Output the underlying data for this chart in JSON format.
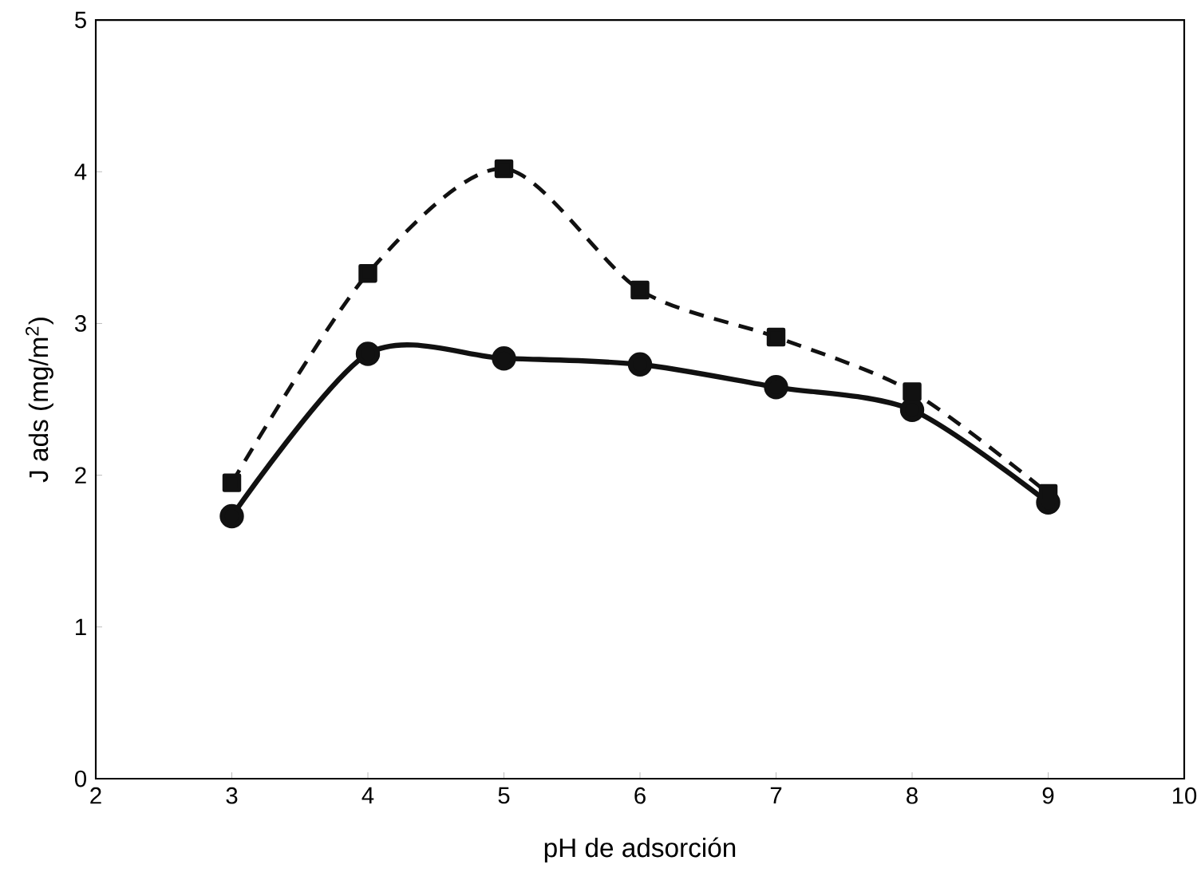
{
  "chart_data": {
    "type": "line",
    "xlabel": "pH de adsorción",
    "ylabel": "J ads (mg/m$^{2}$)",
    "x": [
      3,
      4,
      5,
      6,
      7,
      8,
      9
    ],
    "series": [
      {
        "color": "#111111",
        "marker": "square",
        "line_style": "dashed",
        "values": [
          1.95,
          3.33,
          4.02,
          3.22,
          2.91,
          2.55,
          1.88
        ]
      },
      {
        "color": "#111111",
        "marker": "circle",
        "line_style": "solid",
        "values": [
          1.73,
          2.8,
          2.77,
          2.73,
          2.58,
          2.43,
          1.82
        ]
      }
    ],
    "xlim": [
      2,
      10
    ],
    "ylim": [
      0,
      5
    ],
    "xticks": [
      2,
      3,
      4,
      5,
      6,
      7,
      8,
      9,
      10
    ],
    "yticks": [
      0,
      1,
      2,
      3,
      4,
      5
    ]
  }
}
